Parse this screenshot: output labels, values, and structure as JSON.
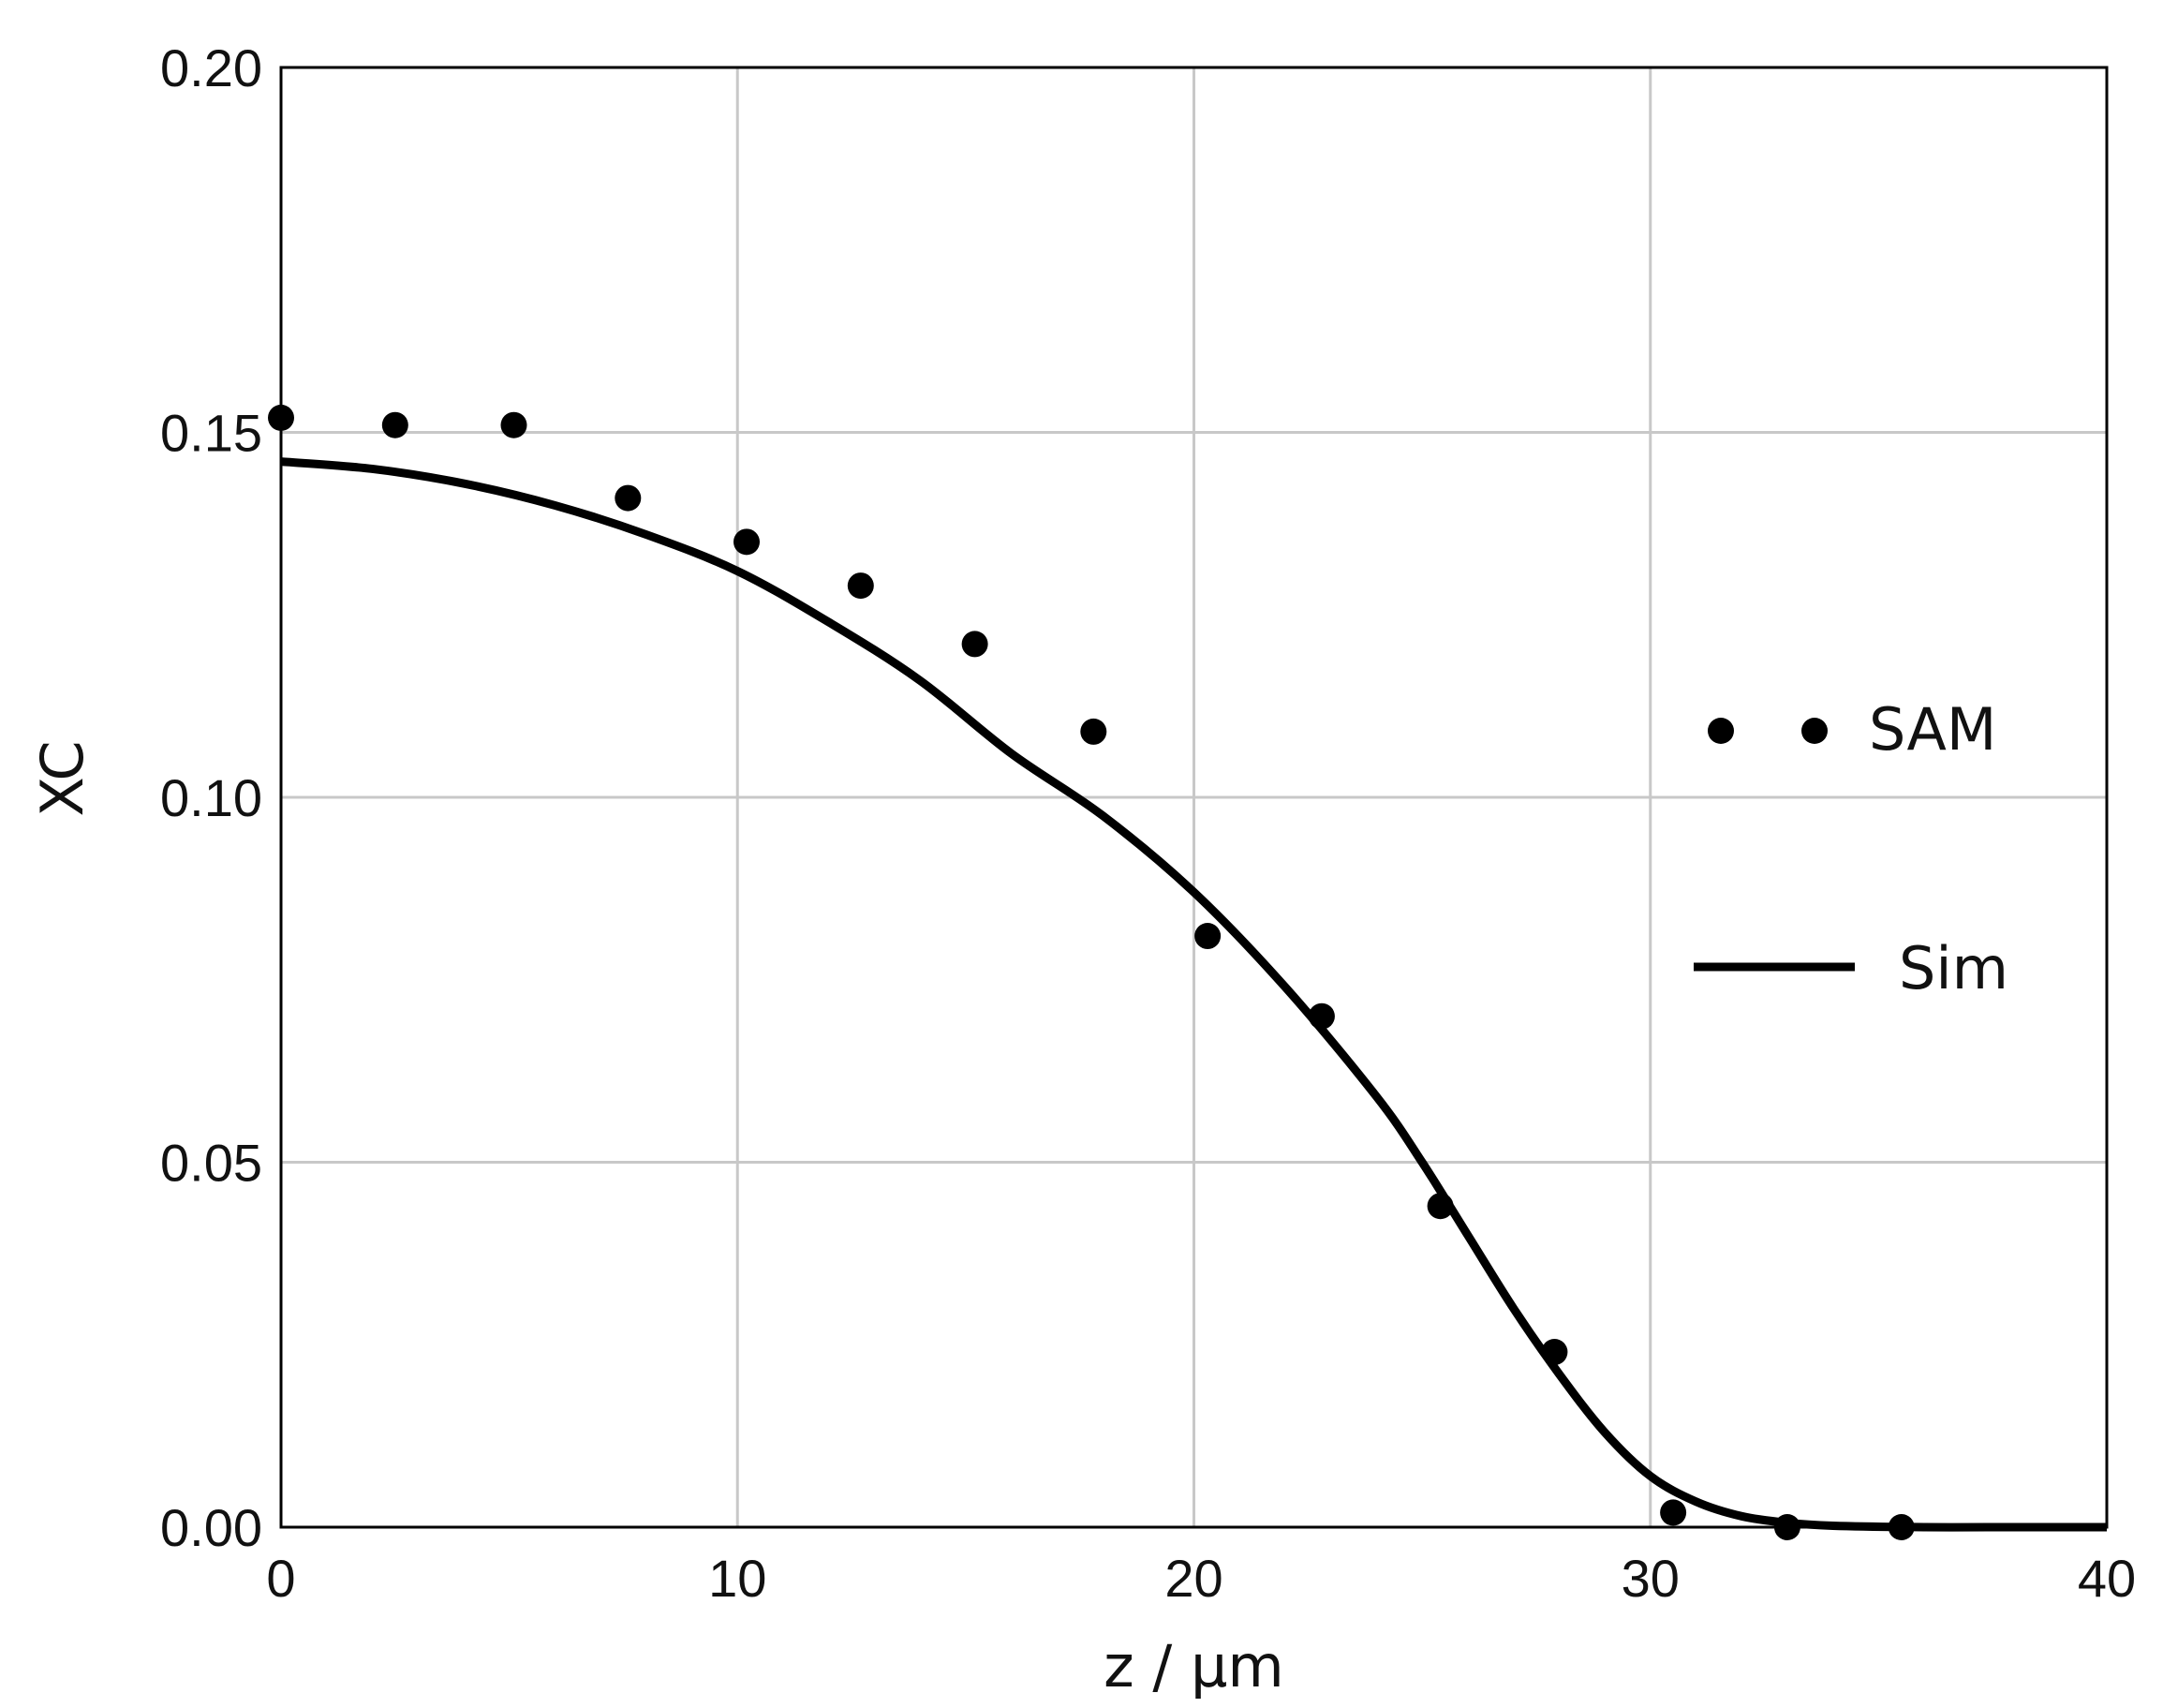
{
  "chart_data": {
    "type": "scatter",
    "title": "",
    "xlabel": "z / µm",
    "ylabel": "XC",
    "xlim": [
      0,
      40
    ],
    "ylim": [
      0,
      0.2
    ],
    "xticks": [
      "0",
      "10",
      "20",
      "30",
      "40"
    ],
    "yticks": [
      "0.00",
      "0.05",
      "0.10",
      "0.15",
      "0.20"
    ],
    "grid": true,
    "legend_position": "right",
    "colors": {
      "grid": "#c8c8c8",
      "series": "#000000",
      "frame": "#000000"
    },
    "series": [
      {
        "name": "SAM",
        "kind": "scatter",
        "x": [
          0,
          2.5,
          5.1,
          7.6,
          10.2,
          12.7,
          15.2,
          17.8,
          20.3,
          22.8,
          25.4,
          27.9,
          30.5,
          33.0,
          35.5
        ],
        "y": [
          0.152,
          0.151,
          0.151,
          0.141,
          0.135,
          0.129,
          0.121,
          0.109,
          0.081,
          0.07,
          0.044,
          0.024,
          0.002,
          0.0,
          0.0
        ]
      },
      {
        "name": "Sim",
        "kind": "line",
        "x": [
          0,
          2,
          4,
          6,
          8,
          10,
          12,
          14,
          16,
          18,
          20,
          22,
          24,
          25,
          26,
          27,
          28,
          29,
          30,
          31,
          32,
          33,
          34,
          36,
          38,
          40
        ],
        "y": [
          0.146,
          0.145,
          0.143,
          0.14,
          0.136,
          0.131,
          0.124,
          0.116,
          0.106,
          0.0975,
          0.087,
          0.074,
          0.059,
          0.05,
          0.04,
          0.03,
          0.021,
          0.013,
          0.007,
          0.0035,
          0.0015,
          0.0006,
          0.0002,
          0.0,
          0.0,
          0.0
        ]
      }
    ]
  }
}
